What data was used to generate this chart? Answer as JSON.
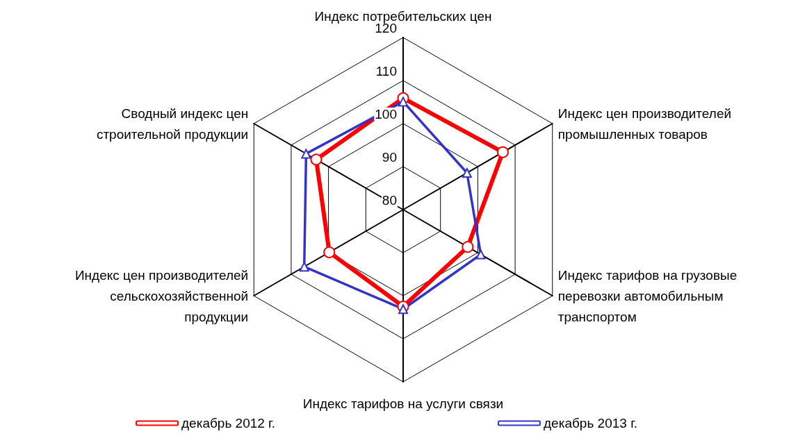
{
  "chart_data": {
    "type": "radar",
    "categories": [
      "Индекс потребительских цен",
      "Индекс цен производителей\nпромышленных товаров",
      "Индекс тарифов на грузовые\nперевозки автомобильным\nтранспортом",
      "Индекс тарифов на услуги связи",
      "Индекс цен производителей\nсельскохозяйственной\nпродукции",
      "Сводный индекс цен\nстроительной продукции"
    ],
    "series": [
      {
        "name": "декабрь 2012 г.",
        "color": "#ff0000",
        "marker": "circle",
        "values": [
          105.9,
          106.7,
          97.3,
          102.5,
          99.8,
          103.3
        ]
      },
      {
        "name": "декабрь 2013 г.",
        "color": "#3333cc",
        "marker": "triangle",
        "values": [
          105.1,
          97.1,
          100.8,
          103.1,
          106.5,
          106.0
        ]
      }
    ],
    "ylim": [
      80,
      120
    ],
    "yticks": [
      80,
      90,
      100,
      110,
      120
    ],
    "legend": "bottom"
  }
}
